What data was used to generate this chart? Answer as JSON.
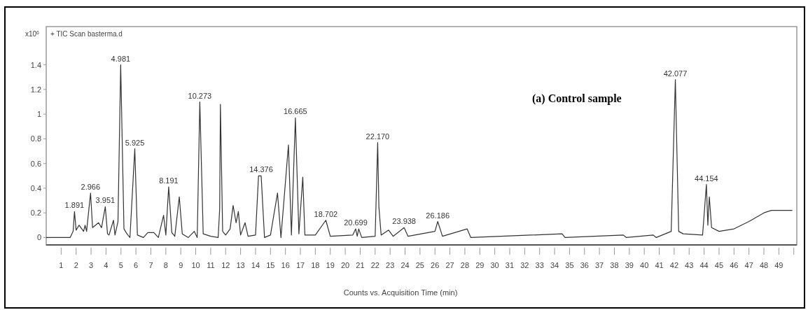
{
  "chart_data": {
    "type": "line",
    "title": "+ TIC Scan basterma.d",
    "xlabel": "Counts vs. Acquisition Time (min)",
    "ylabel": "x10$^{6}$",
    "x": [
      0,
      1.6,
      1.8,
      1.891,
      2.0,
      2.2,
      2.5,
      2.6,
      2.7,
      2.966,
      3.1,
      3.3,
      3.5,
      3.7,
      3.951,
      4.1,
      4.2,
      4.5,
      4.6,
      4.8,
      4.981,
      5.2,
      5.4,
      5.6,
      5.925,
      6.1,
      6.5,
      6.8,
      7.2,
      7.5,
      7.85,
      8.0,
      8.191,
      8.4,
      8.6,
      8.9,
      9.1,
      9.5,
      9.9,
      10.1,
      10.273,
      10.5,
      11.0,
      11.5,
      11.6,
      11.65,
      11.8,
      12.0,
      12.3,
      12.5,
      12.7,
      12.85,
      13.0,
      13.3,
      13.5,
      14.0,
      14.2,
      14.376,
      14.6,
      15.0,
      15.47,
      15.7,
      16.2,
      16.4,
      16.665,
      16.9,
      17.16,
      17.3,
      18.0,
      18.702,
      19.0,
      20.5,
      20.699,
      20.8,
      20.9,
      21.1,
      22.0,
      22.17,
      22.25,
      22.4,
      22.9,
      23.2,
      23.938,
      24.2,
      26.0,
      26.186,
      26.5,
      28.15,
      28.4,
      34.5,
      34.7,
      38.6,
      38.8,
      40.6,
      40.8,
      41.8,
      42.077,
      42.3,
      42.6,
      43.9,
      44.154,
      44.25,
      44.35,
      44.5,
      45.0,
      46.0,
      47.0,
      48.0,
      48.5,
      49.9
    ],
    "values": [
      0,
      0,
      0.05,
      0.21,
      0.06,
      0.1,
      0.05,
      0.1,
      0.05,
      0.36,
      0.08,
      0.1,
      0.12,
      0.08,
      0.25,
      0.03,
      0.02,
      0.14,
      0.02,
      0.13,
      1.4,
      0.07,
      0.03,
      0,
      0.72,
      0.02,
      0,
      0.04,
      0.04,
      0,
      0.18,
      0.02,
      0.41,
      0.04,
      0.01,
      0.33,
      0.03,
      0,
      0.05,
      0,
      1.1,
      0.03,
      0.01,
      0,
      0.23,
      1.08,
      0.05,
      0.02,
      0.07,
      0.26,
      0.12,
      0.21,
      0.02,
      0.12,
      0.01,
      0.02,
      0.5,
      0.5,
      0,
      0.02,
      0.36,
      0,
      0.75,
      0.02,
      0.97,
      0.03,
      0.49,
      0.02,
      0.02,
      0.14,
      0.01,
      0.02,
      0.07,
      0.01,
      0.07,
      0,
      0.01,
      0.77,
      0.25,
      0.02,
      0.06,
      0.01,
      0.08,
      0.01,
      0.05,
      0.13,
      0.01,
      0.07,
      0,
      0.03,
      0,
      0.02,
      0,
      0.02,
      0,
      0.05,
      1.28,
      0.05,
      0.03,
      0.02,
      0.43,
      0.1,
      0.33,
      0.08,
      0.05,
      0.07,
      0.13,
      0.2,
      0.22,
      0.22
    ],
    "color": "#333333",
    "xlim": [
      0,
      50.2
    ],
    "ylim": [
      -0.06,
      1.71
    ],
    "xticks": [
      1,
      2,
      3,
      4,
      5,
      6,
      7,
      8,
      9,
      10,
      11,
      12,
      13,
      14,
      15,
      16,
      17,
      18,
      19,
      20,
      21,
      22,
      23,
      24,
      25,
      26,
      27,
      28,
      29,
      30,
      31,
      32,
      33,
      34,
      35,
      36,
      37,
      38,
      39,
      40,
      41,
      42,
      43,
      44,
      45,
      46,
      47,
      48,
      49,
      {
        "value": 50,
        "label": null
      }
    ],
    "yticks": [
      0,
      0.2,
      0.4,
      0.6,
      0.8,
      1,
      1.2,
      1.4
    ],
    "marker": "none",
    "line_style": "solid",
    "annotations": [
      "(a) Control sample",
      {
        "text": "1.891",
        "x": 1.891,
        "y": 0.21
      },
      {
        "text": "2.966",
        "x": 2.966,
        "y": 0.36
      },
      {
        "text": "3.951",
        "x": 3.951,
        "y": 0.25
      },
      {
        "text": "4.981",
        "x": 4.981,
        "y": 1.4
      },
      {
        "text": "5.925",
        "x": 5.925,
        "y": 0.72
      },
      {
        "text": "8.191",
        "x": 8.191,
        "y": 0.41
      },
      {
        "text": "10.273",
        "x": 10.273,
        "y": 1.1
      },
      {
        "text": "14.376",
        "x": 14.376,
        "y": 0.5
      },
      {
        "text": "16.665",
        "x": 16.665,
        "y": 0.97
      },
      {
        "text": "18.702",
        "x": 18.702,
        "y": 0.14
      },
      {
        "text": "20.699",
        "x": 20.699,
        "y": 0.07
      },
      {
        "text": "22.170",
        "x": 22.17,
        "y": 0.77
      },
      {
        "text": "23.938",
        "x": 23.938,
        "y": 0.08
      },
      {
        "text": "26.186",
        "x": 26.186,
        "y": 0.13
      },
      {
        "text": "42.077",
        "x": 42.077,
        "y": 1.28
      },
      {
        "text": "44.154",
        "x": 44.154,
        "y": 0.43
      }
    ]
  }
}
